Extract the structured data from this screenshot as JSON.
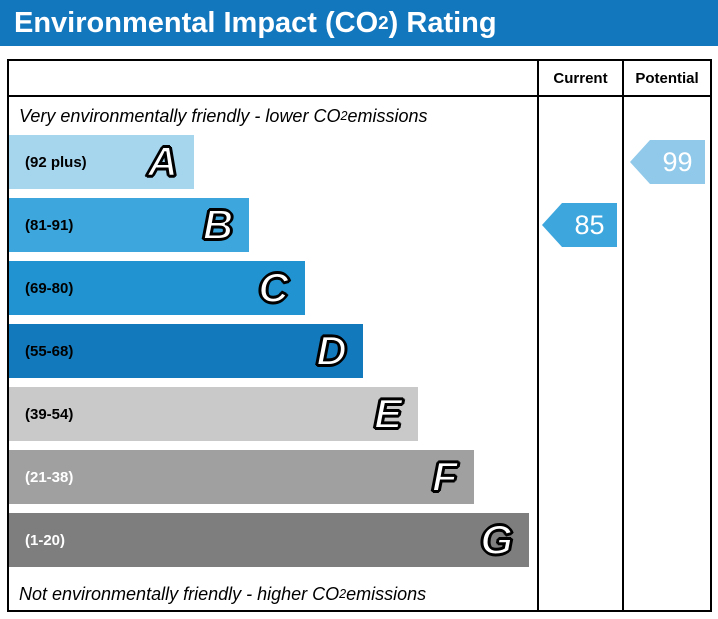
{
  "title": {
    "prefix": "Environmental Impact (CO",
    "sub": "2",
    "suffix": ") Rating"
  },
  "columns": {
    "current": "Current",
    "potential": "Potential"
  },
  "top_note": {
    "prefix": "Very environmentally friendly - lower CO",
    "sub": "2",
    "suffix": " emissions"
  },
  "bottom_note": {
    "prefix": "Not environmentally friendly - higher CO",
    "sub": "2",
    "suffix": " emissions"
  },
  "accent": {
    "title_bg": "#1377be",
    "title_text": "#ffffff"
  },
  "chart_data": {
    "type": "bar",
    "title": "Environmental Impact (CO2) Rating",
    "bands": [
      {
        "letter": "A",
        "range": "(92 plus)",
        "color": "#a6d5ee",
        "width_pct": 35,
        "range_text_color": "#000000"
      },
      {
        "letter": "B",
        "range": "(81-91)",
        "color": "#3ca6dd",
        "width_pct": 45.5,
        "range_text_color": "#000000"
      },
      {
        "letter": "C",
        "range": "(69-80)",
        "color": "#2193d0",
        "width_pct": 56,
        "range_text_color": "#000000"
      },
      {
        "letter": "D",
        "range": "(55-68)",
        "color": "#1379bd",
        "width_pct": 67,
        "range_text_color": "#000000"
      },
      {
        "letter": "E",
        "range": "(39-54)",
        "color": "#c9c9c9",
        "width_pct": 77.5,
        "range_text_color": "#000000"
      },
      {
        "letter": "F",
        "range": "(21-38)",
        "color": "#a0a0a0",
        "width_pct": 88,
        "range_text_color": "#ffffff"
      },
      {
        "letter": "G",
        "range": "(1-20)",
        "color": "#7e7e7e",
        "width_pct": 98.5,
        "range_text_color": "#ffffff"
      }
    ],
    "current": {
      "value": "85",
      "band": "B",
      "band_index": 1,
      "color": "#3ca6dd"
    },
    "potential": {
      "value": "99",
      "band": "A",
      "band_index": 0,
      "color": "#90c9ea"
    }
  }
}
